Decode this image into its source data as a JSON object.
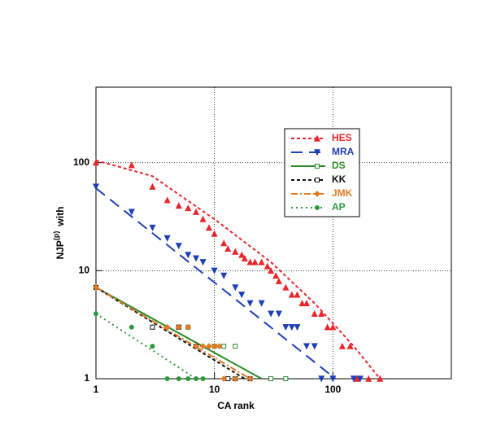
{
  "chart_data": {
    "type": "scatter",
    "x_label": "CA rank",
    "y_label": "NJP",
    "y_label_sup": "(p)",
    "y_label_suffix": "with",
    "xlim": [
      1,
      1000
    ],
    "ylim": [
      1,
      500
    ],
    "xticks": [
      1,
      10,
      100
    ],
    "yticks": [
      1,
      10,
      100
    ],
    "log_x": true,
    "log_y": true,
    "grid": true,
    "legend": "upper right",
    "series": [
      {
        "name": "HES",
        "color": "#e8262b",
        "marker": "triangle-up",
        "dash": "4,3",
        "x": [
          1,
          2,
          3,
          4,
          5,
          6,
          7,
          8,
          9,
          10,
          12,
          13,
          15,
          17,
          18,
          20,
          22,
          25,
          28,
          30,
          33,
          35,
          40,
          45,
          50,
          55,
          60,
          70,
          80,
          90,
          100,
          120,
          140,
          160,
          200,
          250
        ],
        "values": [
          100,
          95,
          60,
          45,
          40,
          38,
          35,
          30,
          25,
          22,
          18,
          16,
          15,
          14,
          13,
          12,
          12,
          12,
          11,
          10,
          9,
          8,
          7,
          6,
          6,
          5,
          5,
          4,
          4,
          3,
          3,
          2,
          2,
          1,
          1,
          1
        ],
        "fit_x": [
          1,
          3,
          10,
          30,
          70,
          150,
          250
        ],
        "fit_values": [
          105,
          75,
          30,
          12,
          5,
          2,
          1
        ]
      },
      {
        "name": "MRA",
        "color": "#1f3fb5",
        "marker": "triangle-down",
        "dash": "14,8",
        "x": [
          1,
          2,
          3,
          4,
          5,
          6,
          7,
          8,
          10,
          12,
          15,
          17,
          20,
          25,
          30,
          35,
          40,
          45,
          50,
          60,
          70,
          80,
          100,
          150,
          170
        ],
        "values": [
          60,
          35,
          25,
          20,
          17,
          14,
          13,
          12,
          10,
          9,
          7,
          6,
          5,
          5,
          4,
          4,
          3,
          3,
          3,
          2,
          2,
          1,
          1,
          1,
          1
        ],
        "fit_x": [
          1,
          105
        ],
        "fit_values": [
          58,
          1
        ]
      },
      {
        "name": "DS",
        "color": "#2b8a2b",
        "marker": "square",
        "dash": "",
        "x": [
          1,
          5,
          6,
          7,
          10,
          12,
          15,
          20,
          30,
          40
        ],
        "values": [
          7,
          3,
          3,
          2,
          2,
          2,
          2,
          1,
          1,
          1
        ],
        "fit_x": [
          1,
          25
        ],
        "fit_values": [
          7,
          1
        ]
      },
      {
        "name": "KK",
        "color": "#111111",
        "marker": "square",
        "dash": "4,3",
        "x": [
          1,
          3,
          5,
          7,
          13,
          15,
          20
        ],
        "values": [
          7,
          3,
          3,
          2,
          1,
          1,
          1
        ],
        "fit_x": [
          1,
          18
        ],
        "fit_values": [
          7,
          1
        ]
      },
      {
        "name": "JMK",
        "color": "#e07b24",
        "marker": "diamond",
        "dash": "8,3,2,3",
        "x": [
          1,
          4,
          5,
          6,
          7,
          8,
          9,
          10,
          11,
          12,
          15,
          20
        ],
        "values": [
          7,
          3,
          3,
          3,
          2,
          2,
          2,
          2,
          2,
          1,
          1,
          1
        ],
        "fit_x": [
          1,
          20
        ],
        "fit_values": [
          7,
          1
        ]
      },
      {
        "name": "AP",
        "color": "#2b9a3b",
        "marker": "circle",
        "dash": "2,4",
        "x": [
          1,
          2,
          3,
          4,
          5,
          6,
          7,
          8
        ],
        "values": [
          4,
          3,
          2,
          1,
          1,
          1,
          1,
          1
        ],
        "fit_x": [
          1,
          7
        ],
        "fit_values": [
          4,
          1
        ]
      }
    ]
  }
}
